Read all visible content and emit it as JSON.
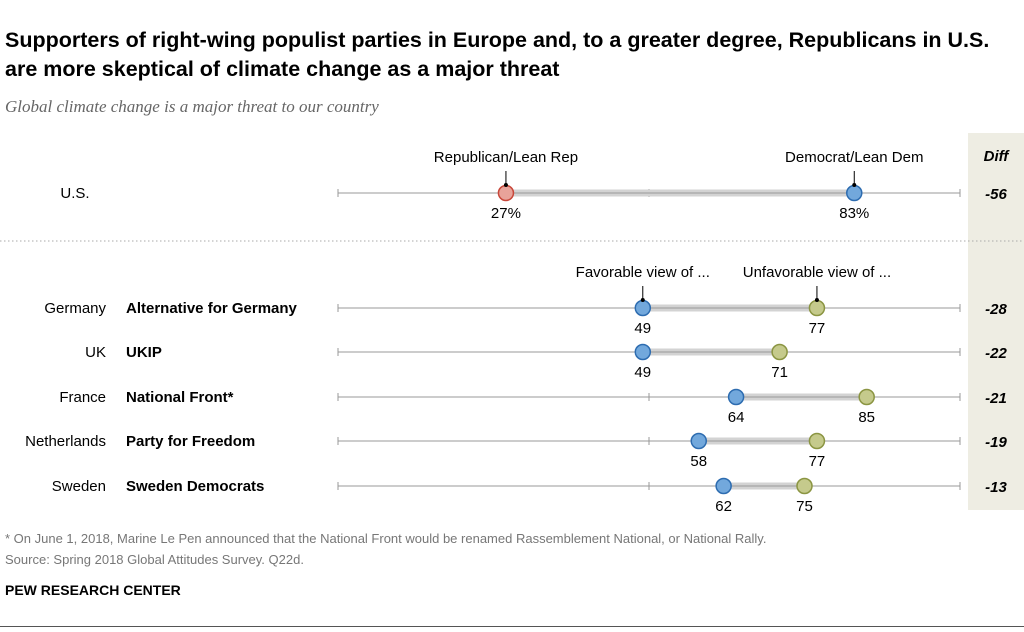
{
  "title": "Supporters of right-wing populist parties in Europe and, to a greater degree, Republicans in U.S. are more skeptical of climate change as a major threat",
  "subtitle": "Global climate change is a major threat to our country",
  "footnote": "* On June 1, 2018, Marine Le Pen announced that the National Front would be renamed Rassemblement National, or National Rally.",
  "source": "Source: Spring 2018 Global Attitudes Survey. Q22d.",
  "credit": "PEW RESEARCH CENTER",
  "colors": {
    "republican": "#e8a39a",
    "republican_stroke": "#c8473a",
    "favorable": "#72a8dc",
    "favorable_stroke": "#2d6cb0",
    "unfavorable": "#c5ca8c",
    "unfavorable_stroke": "#8b9542",
    "range_bar": "#d3d3d3",
    "diff_band": "#eeede3"
  },
  "chart_data": {
    "type": "dot-range",
    "xlim": [
      0,
      100
    ],
    "diff_header": "Diff",
    "us": {
      "label": "U.S.",
      "series_labels": [
        "Republican/Lean Rep",
        "Democrat/Lean Dem"
      ],
      "values": [
        27,
        83
      ],
      "value_labels": [
        "27%",
        "83%"
      ],
      "diff": "-56"
    },
    "europe_series_labels": [
      "Favorable view of ...",
      "Unfavorable view of ..."
    ],
    "rows": [
      {
        "country": "Germany",
        "party": "Alternative for Germany",
        "favorable": 49,
        "unfavorable": 77,
        "diff": "-28"
      },
      {
        "country": "UK",
        "party": "UKIP",
        "favorable": 49,
        "unfavorable": 71,
        "diff": "-22"
      },
      {
        "country": "France",
        "party": "National Front*",
        "favorable": 64,
        "unfavorable": 85,
        "diff": "-21"
      },
      {
        "country": "Netherlands",
        "party": "Party for Freedom",
        "favorable": 58,
        "unfavorable": 77,
        "diff": "-19"
      },
      {
        "country": "Sweden",
        "party": "Sweden Democrats",
        "favorable": 62,
        "unfavorable": 75,
        "diff": "-13"
      }
    ]
  }
}
